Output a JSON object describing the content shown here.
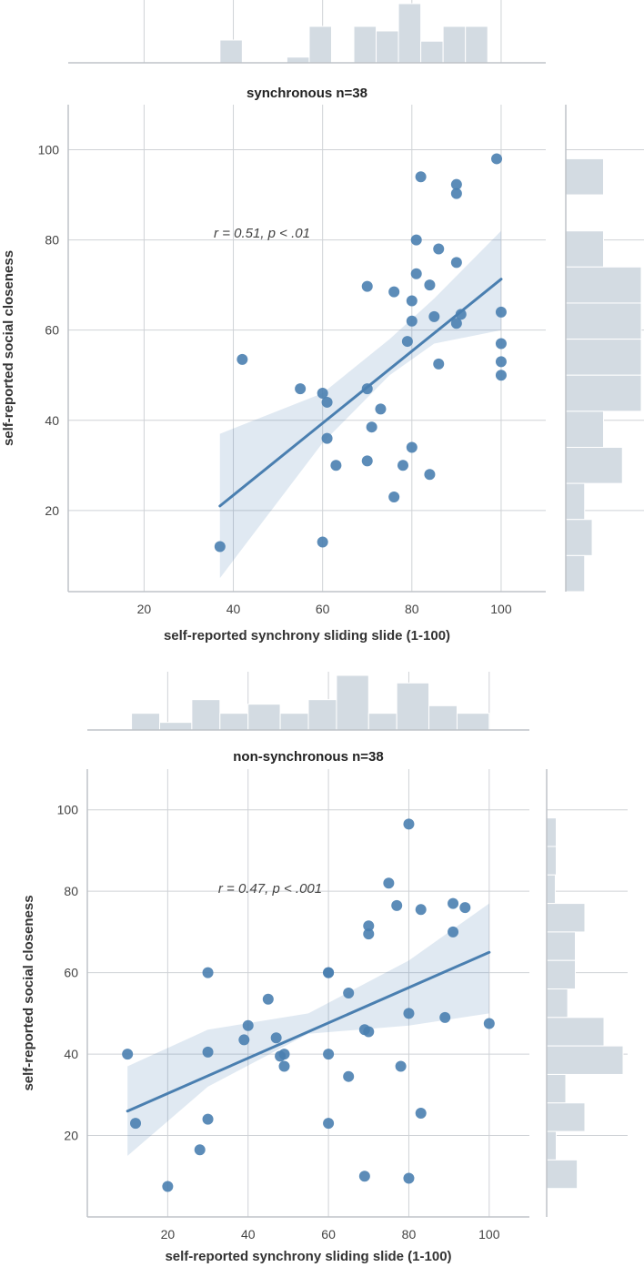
{
  "chart_data": [
    {
      "type": "scatter",
      "title": "synchronous n=38",
      "xlabel": "self-reported synchrony sliding slide (1-100)",
      "ylabel": "self-reported social closeness",
      "annotation": "r = 0.51, p < .01",
      "xlim": [
        3,
        110
      ],
      "ylim": [
        2,
        110
      ],
      "xticks": [
        20,
        40,
        60,
        80,
        100
      ],
      "yticks": [
        20,
        40,
        60,
        80,
        100
      ],
      "grid": true,
      "point_color": "#4a7fb0",
      "fit_line": {
        "x": [
          37,
          100
        ],
        "y": [
          21,
          71.3
        ]
      },
      "ci_band": {
        "x": [
          37,
          60,
          75,
          85,
          100
        ],
        "lower": [
          5,
          35,
          50,
          57,
          60
        ],
        "upper": [
          37,
          46,
          58,
          67,
          82
        ]
      },
      "x": [
        37,
        42,
        55,
        60,
        61,
        61,
        63,
        60,
        70,
        70,
        71,
        73,
        70,
        76,
        78,
        79,
        80,
        80,
        81,
        81,
        84,
        85,
        86,
        86,
        90,
        90,
        90,
        90,
        91,
        99,
        100,
        100,
        100,
        100,
        82,
        84,
        76,
        80
      ],
      "y": [
        12,
        53.5,
        47,
        46,
        44,
        36,
        30,
        13,
        47,
        31,
        38.5,
        42.5,
        69.7,
        68.5,
        30,
        57.5,
        66.5,
        34,
        80,
        72.5,
        28,
        63,
        78,
        52.5,
        75,
        61.5,
        90.3,
        92.3,
        63.5,
        98,
        64,
        57,
        53,
        50,
        94,
        70,
        23,
        62
      ],
      "marginal_x": {
        "bins": [
          [
            37,
            42,
            1
          ],
          [
            42,
            47,
            0
          ],
          [
            47,
            52,
            0
          ],
          [
            52,
            57,
            0.25
          ],
          [
            57,
            62,
            1.6
          ],
          [
            62,
            67,
            0
          ],
          [
            67,
            72,
            1.6
          ],
          [
            72,
            77,
            1.4
          ],
          [
            77,
            82,
            2.6
          ],
          [
            82,
            87,
            0.95
          ],
          [
            87,
            92,
            1.6
          ],
          [
            92,
            97,
            1.6
          ]
        ]
      },
      "marginal_y": {
        "bins": [
          [
            90,
            98,
            2
          ],
          [
            82,
            90,
            0
          ],
          [
            74,
            82,
            2
          ],
          [
            66,
            74,
            4
          ],
          [
            58,
            66,
            4
          ],
          [
            50,
            58,
            4
          ],
          [
            42,
            50,
            4
          ],
          [
            34,
            42,
            2
          ],
          [
            26,
            34,
            3
          ],
          [
            18,
            26,
            1
          ],
          [
            10,
            18,
            1.4
          ],
          [
            2,
            10,
            1
          ]
        ]
      }
    },
    {
      "type": "scatter",
      "title": "non-synchronous n=38",
      "xlabel": "self-reported synchrony sliding slide (1-100)",
      "ylabel": "self-reported social closeness",
      "annotation": "r = 0.47, p < .001",
      "xlim": [
        0,
        110
      ],
      "ylim": [
        0,
        110
      ],
      "xticks": [
        20,
        40,
        60,
        80,
        100
      ],
      "yticks": [
        20,
        40,
        60,
        80,
        100
      ],
      "grid": true,
      "point_color": "#4a7fb0",
      "fit_line": {
        "x": [
          10,
          100
        ],
        "y": [
          26,
          65
        ]
      },
      "ci_band": {
        "x": [
          10,
          30,
          55,
          80,
          100
        ],
        "lower": [
          15,
          32,
          45,
          47,
          50
        ],
        "upper": [
          37,
          46,
          50,
          63,
          77
        ]
      },
      "x": [
        10,
        12,
        20,
        28,
        30,
        30,
        30,
        39,
        40,
        45,
        47,
        48,
        49,
        49,
        60,
        60,
        60,
        60,
        65,
        65,
        69,
        69,
        70,
        70,
        70,
        75,
        77,
        78,
        80,
        80,
        80,
        83,
        83,
        89,
        91,
        91,
        94,
        100
      ],
      "y": [
        40,
        23,
        7.5,
        16.5,
        60,
        24,
        40.5,
        43.5,
        47,
        53.5,
        44,
        39.5,
        40,
        37,
        60,
        60,
        23,
        40,
        55,
        34.5,
        46,
        10,
        71.5,
        69.5,
        45.5,
        82,
        76.5,
        37,
        96.5,
        50,
        9.5,
        75.5,
        25.5,
        49,
        77,
        70,
        76,
        47.5
      ],
      "marginal_x": {
        "bins": [
          [
            11,
            18,
            0.55
          ],
          [
            18,
            26,
            0.25
          ],
          [
            26,
            33,
            1
          ],
          [
            33,
            40,
            0.55
          ],
          [
            40,
            48,
            0.85
          ],
          [
            48,
            55,
            0.55
          ],
          [
            55,
            62,
            1
          ],
          [
            62,
            70,
            1.8
          ],
          [
            70,
            77,
            0.55
          ],
          [
            77,
            85,
            1.55
          ],
          [
            85,
            92,
            0.8
          ],
          [
            92,
            100,
            0.55
          ]
        ]
      },
      "marginal_y": {
        "bins": [
          [
            91,
            98,
            1
          ],
          [
            84,
            91,
            1
          ],
          [
            77,
            84,
            0.9
          ],
          [
            70,
            77,
            4
          ],
          [
            63,
            70,
            3
          ],
          [
            56,
            63,
            3
          ],
          [
            49,
            56,
            2.2
          ],
          [
            42,
            49,
            6
          ],
          [
            35,
            42,
            8
          ],
          [
            28,
            35,
            2
          ],
          [
            21,
            28,
            4
          ],
          [
            14,
            21,
            1
          ],
          [
            7,
            14,
            3.2
          ]
        ]
      }
    }
  ]
}
